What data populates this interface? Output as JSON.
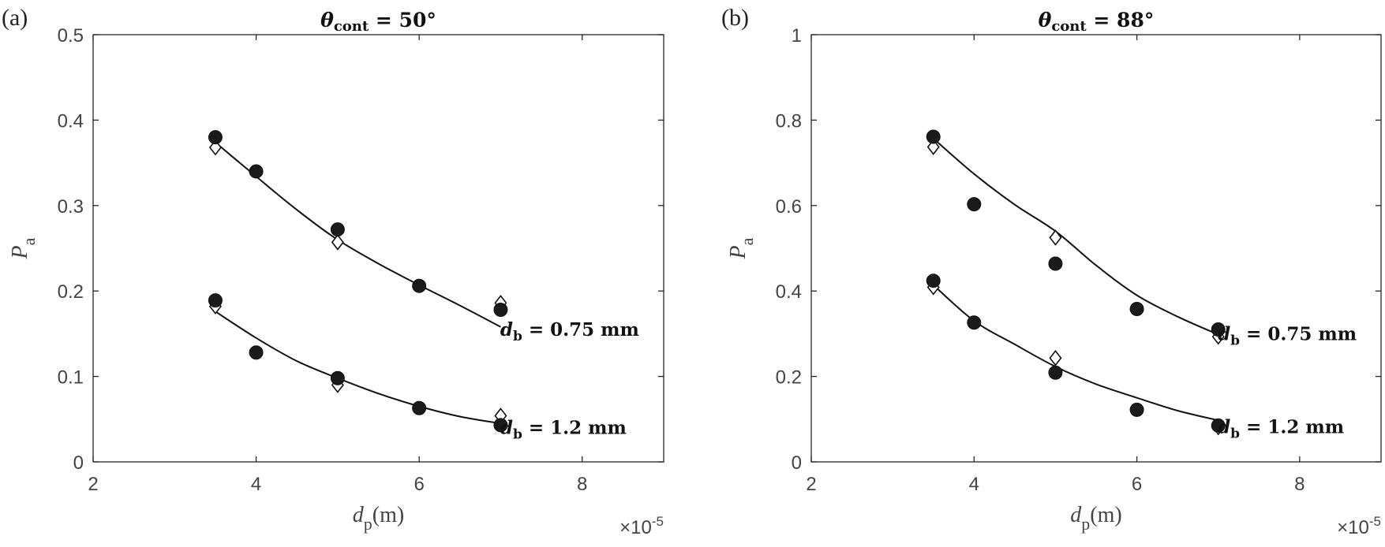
{
  "chart_data": [
    {
      "type": "scatter",
      "panel_label": "(a)",
      "title": {
        "symbol": "θ",
        "subscript": "cont",
        "rest": " =  50°"
      },
      "xlabel": {
        "symbol": "d",
        "subscript": "p",
        "rest": "(m)"
      },
      "ylabel": {
        "symbol": "P",
        "subscript": "a"
      },
      "x_exponent": {
        "base": "×10",
        "power": "-5"
      },
      "xlim": [
        2,
        9
      ],
      "ylim": [
        0,
        0.5
      ],
      "xticks": [
        2,
        4,
        6,
        8
      ],
      "xtick_labels": [
        "2",
        "4",
        "6",
        "8"
      ],
      "yticks": [
        0,
        0.1,
        0.2,
        0.3,
        0.4,
        0.5
      ],
      "ytick_labels": [
        "0",
        "0.1",
        "0.2",
        "0.3",
        "0.4",
        "0.5"
      ],
      "grid": false,
      "series": [
        {
          "name": "d_b = 0.75 mm, circles",
          "marker": "circle",
          "x": [
            3.5,
            4,
            5,
            6,
            7
          ],
          "y": [
            0.38,
            0.34,
            0.272,
            0.206,
            0.178
          ]
        },
        {
          "name": "d_b = 0.75 mm, diamonds",
          "marker": "diamond",
          "x": [
            3.5,
            5,
            7
          ],
          "y": [
            0.368,
            0.257,
            0.186
          ]
        },
        {
          "name": "d_b = 0.75 mm, fit",
          "marker": "line",
          "x": [
            3.5,
            4,
            4.5,
            5,
            5.5,
            6,
            6.5,
            7
          ],
          "y": [
            0.374,
            0.334,
            0.295,
            0.26,
            0.232,
            0.207,
            0.183,
            0.158
          ]
        },
        {
          "name": "d_b = 1.2 mm, circles",
          "marker": "circle",
          "x": [
            3.5,
            4,
            5,
            6,
            7
          ],
          "y": [
            0.189,
            0.128,
            0.098,
            0.063,
            0.043
          ]
        },
        {
          "name": "d_b = 1.2 mm, diamonds",
          "marker": "diamond",
          "x": [
            3.5,
            5,
            7
          ],
          "y": [
            0.182,
            0.09,
            0.054
          ]
        },
        {
          "name": "d_b = 1.2 mm, fit",
          "marker": "line",
          "x": [
            3.5,
            4,
            4.5,
            5,
            5.5,
            6,
            6.5,
            7
          ],
          "y": [
            0.176,
            0.145,
            0.118,
            0.098,
            0.08,
            0.065,
            0.053,
            0.045
          ]
        }
      ],
      "annotations": [
        {
          "symbol": "d",
          "subscript": "b",
          "rest": " = 0.75 mm",
          "at": [
            7.75,
            0.155
          ]
        },
        {
          "symbol": "d",
          "subscript": "b",
          "rest": " = 1.2 mm",
          "at": [
            7.75,
            0.04
          ]
        }
      ]
    },
    {
      "type": "scatter",
      "panel_label": "(b)",
      "title": {
        "symbol": "θ",
        "subscript": "cont",
        "rest": " =  88°"
      },
      "xlabel": {
        "symbol": "d",
        "subscript": "p",
        "rest": "(m)"
      },
      "ylabel": {
        "symbol": "P",
        "subscript": "a"
      },
      "x_exponent": {
        "base": "×10",
        "power": "-5"
      },
      "xlim": [
        2,
        9
      ],
      "ylim": [
        0,
        1
      ],
      "xticks": [
        2,
        4,
        6,
        8
      ],
      "xtick_labels": [
        "2",
        "4",
        "6",
        "8"
      ],
      "yticks": [
        0,
        0.2,
        0.4,
        0.6,
        0.8,
        1
      ],
      "ytick_labels": [
        "0",
        "0.2",
        "0.4",
        "0.6",
        "0.8",
        "1"
      ],
      "grid": false,
      "series": [
        {
          "name": "d_b = 0.75 mm, circles",
          "marker": "circle",
          "x": [
            3.5,
            4,
            5,
            6,
            7
          ],
          "y": [
            0.761,
            0.603,
            0.464,
            0.358,
            0.31
          ]
        },
        {
          "name": "d_b = 0.75 mm, diamonds",
          "marker": "diamond",
          "x": [
            3.5,
            5,
            7
          ],
          "y": [
            0.737,
            0.525,
            0.293
          ]
        },
        {
          "name": "d_b = 0.75 mm, fit",
          "marker": "line",
          "x": [
            3.5,
            4,
            4.5,
            5,
            5.5,
            6,
            6.5,
            7
          ],
          "y": [
            0.757,
            0.674,
            0.602,
            0.54,
            0.46,
            0.39,
            0.34,
            0.298
          ]
        },
        {
          "name": "d_b = 1.2 mm, circles",
          "marker": "circle",
          "x": [
            3.5,
            4,
            5,
            6,
            7
          ],
          "y": [
            0.424,
            0.326,
            0.209,
            0.122,
            0.085
          ]
        },
        {
          "name": "d_b = 1.2 mm, diamonds",
          "marker": "diamond",
          "x": [
            3.5,
            5,
            7
          ],
          "y": [
            0.409,
            0.243,
            0.081
          ]
        },
        {
          "name": "d_b = 1.2 mm, fit",
          "marker": "line",
          "x": [
            3.5,
            4,
            4.5,
            5,
            5.5,
            6,
            6.5,
            7
          ],
          "y": [
            0.414,
            0.33,
            0.275,
            0.223,
            0.182,
            0.15,
            0.12,
            0.097
          ]
        }
      ],
      "annotations": [
        {
          "symbol": "d",
          "subscript": "b",
          "rest": " = 0.75 mm",
          "at": [
            7.75,
            0.3
          ]
        },
        {
          "symbol": "d",
          "subscript": "b",
          "rest": " = 1.2 mm",
          "at": [
            7.75,
            0.082
          ]
        }
      ]
    }
  ]
}
